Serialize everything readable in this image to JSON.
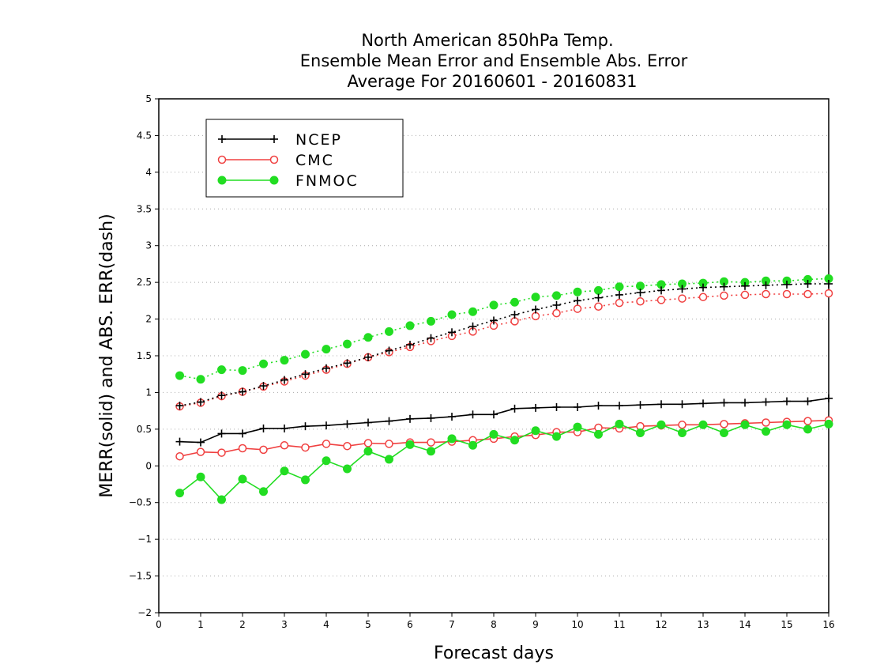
{
  "chart_data": {
    "type": "line",
    "title": [
      "North American 850hPa Temp.",
      "Ensemble Mean Error and Ensemble Abs. Error",
      "Average For 20160601 - 20160831"
    ],
    "xlabel": "Forecast days",
    "ylabel": "MERR(solid) and ABS. ERR(dash)",
    "xlim": [
      0,
      16
    ],
    "ylim": [
      -2,
      5
    ],
    "xticks": [
      0,
      1,
      2,
      3,
      4,
      5,
      6,
      7,
      8,
      9,
      10,
      11,
      12,
      13,
      14,
      15,
      16
    ],
    "yticks": [
      -2,
      -1.5,
      -1,
      -0.5,
      0,
      0.5,
      1,
      1.5,
      2,
      2.5,
      3,
      3.5,
      4,
      4.5,
      5
    ],
    "grid": "horizontal dotted",
    "legend_position": "top-left",
    "x": [
      0.5,
      1,
      1.5,
      2,
      2.5,
      3,
      3.5,
      4,
      4.5,
      5,
      5.5,
      6,
      6.5,
      7,
      7.5,
      8,
      8.5,
      9,
      9.5,
      10,
      10.5,
      11,
      11.5,
      12,
      12.5,
      13,
      13.5,
      14,
      14.5,
      15,
      15.5,
      16
    ],
    "series": [
      {
        "name": "NCEP",
        "color": "#000000",
        "marker": "plus",
        "merr_solid": [
          0.33,
          0.32,
          0.44,
          0.44,
          0.51,
          0.51,
          0.54,
          0.55,
          0.57,
          0.59,
          0.61,
          0.64,
          0.65,
          0.67,
          0.7,
          0.7,
          0.78,
          0.79,
          0.8,
          0.8,
          0.82,
          0.82,
          0.83,
          0.84,
          0.84,
          0.85,
          0.86,
          0.86,
          0.87,
          0.88,
          0.88,
          0.92
        ],
        "abs_err_dash": [
          0.82,
          0.87,
          0.96,
          1.01,
          1.09,
          1.17,
          1.25,
          1.33,
          1.4,
          1.48,
          1.57,
          1.65,
          1.74,
          1.82,
          1.9,
          1.98,
          2.06,
          2.13,
          2.19,
          2.25,
          2.29,
          2.33,
          2.36,
          2.39,
          2.41,
          2.43,
          2.44,
          2.45,
          2.46,
          2.47,
          2.48,
          2.48
        ]
      },
      {
        "name": "CMC",
        "color": "#f04040",
        "marker": "open-circle",
        "merr_solid": [
          0.13,
          0.19,
          0.18,
          0.24,
          0.22,
          0.28,
          0.25,
          0.3,
          0.27,
          0.31,
          0.3,
          0.32,
          0.32,
          0.33,
          0.35,
          0.37,
          0.4,
          0.42,
          0.46,
          0.46,
          0.52,
          0.51,
          0.54,
          0.55,
          0.56,
          0.56,
          0.57,
          0.58,
          0.59,
          0.6,
          0.61,
          0.62
        ],
        "abs_err_dash": [
          0.81,
          0.86,
          0.95,
          1.01,
          1.08,
          1.15,
          1.23,
          1.31,
          1.39,
          1.48,
          1.55,
          1.62,
          1.7,
          1.77,
          1.83,
          1.91,
          1.97,
          2.04,
          2.08,
          2.14,
          2.17,
          2.22,
          2.24,
          2.26,
          2.28,
          2.3,
          2.32,
          2.33,
          2.34,
          2.34,
          2.34,
          2.35
        ]
      },
      {
        "name": "FNMOC",
        "color": "#22dd22",
        "marker": "filled-circle",
        "merr_solid": [
          -0.37,
          -0.15,
          -0.46,
          -0.18,
          -0.35,
          -0.07,
          -0.19,
          0.07,
          -0.04,
          0.2,
          0.09,
          0.29,
          0.2,
          0.37,
          0.28,
          0.43,
          0.35,
          0.48,
          0.4,
          0.53,
          0.43,
          0.57,
          0.45,
          0.56,
          0.45,
          0.56,
          0.45,
          0.56,
          0.47,
          0.56,
          0.5,
          0.57
        ],
        "abs_err_dash": [
          1.23,
          1.18,
          1.31,
          1.3,
          1.39,
          1.44,
          1.52,
          1.59,
          1.66,
          1.75,
          1.83,
          1.91,
          1.97,
          2.06,
          2.1,
          2.19,
          2.23,
          2.3,
          2.32,
          2.37,
          2.39,
          2.44,
          2.45,
          2.47,
          2.48,
          2.49,
          2.51,
          2.5,
          2.52,
          2.52,
          2.54,
          2.55
        ]
      }
    ]
  }
}
